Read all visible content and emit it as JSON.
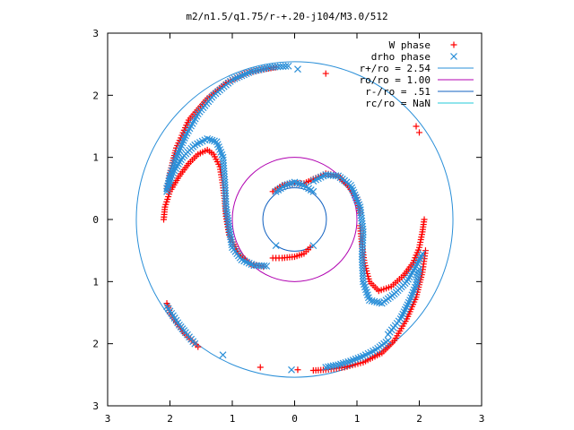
{
  "chart_data": {
    "type": "scatter",
    "title": "m2/n1.5/q1.75/r-+.20-j104/M3.0/512",
    "xlabel": "",
    "ylabel": "",
    "xlim": [
      -3,
      3
    ],
    "ylim": [
      -3,
      3
    ],
    "x_tick_labels": [
      "3",
      "2",
      "1",
      "0",
      "1",
      "2",
      "3"
    ],
    "y_tick_labels": [
      "3",
      "2",
      "1",
      "0",
      "1",
      "2",
      "3"
    ],
    "x_tick_values": [
      -3,
      -2,
      -1,
      0,
      1,
      2,
      3
    ],
    "y_tick_values": [
      3,
      2,
      1,
      0,
      -1,
      -2,
      -3
    ],
    "grid": false,
    "legend_position": "top-right",
    "legend": [
      {
        "label": "W phase",
        "marker": "plus",
        "color": "#ff0000"
      },
      {
        "label": "drho phase",
        "marker": "cross",
        "color": "#2a8fd8"
      },
      {
        "label": "r+/ro = 2.54",
        "line": true,
        "color": "#2a8fd8"
      },
      {
        "label": "ro/ro = 1.00",
        "line": true,
        "color": "#b000b0"
      },
      {
        "label": "r-/ro = .51",
        "line": true,
        "color": "#1060c0"
      },
      {
        "label": "rc/ro = NaN",
        "line": true,
        "color": "#20c8d8"
      }
    ],
    "circles": [
      {
        "name": "r+/ro = 2.54",
        "r": 2.54,
        "color": "#2a8fd8"
      },
      {
        "name": "ro/ro = 1.00",
        "r": 1.0,
        "color": "#b000b0"
      },
      {
        "name": "r-/ro = .51",
        "r": 0.51,
        "color": "#1060c0"
      }
    ],
    "series": [
      {
        "name": "W phase",
        "color": "#ff0000",
        "marker": "plus",
        "arms": [
          {
            "x": [
              -0.3,
              -0.5,
              -0.8,
              -1.1,
              -1.4,
              -1.7,
              -1.9,
              -2.0,
              -2.05
            ],
            "y": [
              2.45,
              2.42,
              2.35,
              2.2,
              1.95,
              1.6,
              1.15,
              0.75,
              0.5
            ]
          },
          {
            "x": [
              -2.1,
              -2.08,
              -2.0,
              -1.85,
              -1.7,
              -1.55,
              -1.4,
              -1.3,
              -1.2,
              -1.15,
              -1.12,
              -1.1,
              -1.05,
              -0.9,
              -0.7,
              -0.5
            ],
            "y": [
              0.0,
              0.2,
              0.45,
              0.7,
              0.9,
              1.05,
              1.12,
              1.05,
              0.85,
              0.55,
              0.3,
              0.05,
              -0.25,
              -0.55,
              -0.72,
              -0.76
            ]
          },
          {
            "x": [
              -0.35,
              -0.2,
              0.0,
              0.15,
              0.25
            ],
            "y": [
              -0.62,
              -0.62,
              -0.6,
              -0.55,
              -0.45
            ]
          },
          {
            "x": [
              -0.35,
              -0.2,
              0.0,
              0.15,
              0.3,
              0.5,
              0.7,
              0.85,
              1.0,
              1.05
            ],
            "y": [
              0.45,
              0.55,
              0.58,
              0.58,
              0.65,
              0.74,
              0.7,
              0.55,
              0.35,
              0.1
            ]
          },
          {
            "x": [
              1.05,
              1.08,
              1.12,
              1.2,
              1.35,
              1.55,
              1.75,
              1.9,
              2.0,
              2.05,
              2.08
            ],
            "y": [
              -0.1,
              -0.4,
              -0.7,
              -1.0,
              -1.15,
              -1.08,
              -0.9,
              -0.7,
              -0.45,
              -0.2,
              0.0
            ]
          },
          {
            "x": [
              2.1,
              2.05,
              1.95,
              1.8,
              1.6,
              1.4,
              1.1,
              0.8,
              0.5,
              0.3
            ],
            "y": [
              -0.5,
              -0.85,
              -1.25,
              -1.6,
              -1.95,
              -2.15,
              -2.3,
              -2.38,
              -2.42,
              -2.43
            ]
          },
          {
            "x": [
              -2.05,
              -2.0,
              -1.9,
              -1.8,
              -1.65,
              -1.55
            ],
            "y": [
              -1.35,
              -1.5,
              -1.65,
              -1.8,
              -1.95,
              -2.05
            ]
          },
          {
            "x": [
              0.5,
              -0.55,
              0.05,
              1.95,
              2.0
            ],
            "y": [
              2.35,
              -2.38,
              -2.42,
              1.5,
              1.4
            ]
          }
        ]
      },
      {
        "name": "drho phase",
        "color": "#2a8fd8",
        "marker": "cross",
        "arms": [
          {
            "x": [
              -0.1,
              -0.4,
              -0.7,
              -1.0,
              -1.3,
              -1.55,
              -1.75,
              -1.9,
              -2.0,
              -2.05
            ],
            "y": [
              2.47,
              2.45,
              2.38,
              2.25,
              2.0,
              1.7,
              1.35,
              1.0,
              0.7,
              0.45
            ]
          },
          {
            "x": [
              -2.05,
              -1.95,
              -1.8,
              -1.6,
              -1.4,
              -1.25,
              -1.15,
              -1.12,
              -1.1,
              -1.05,
              -1.0,
              -0.85,
              -0.65,
              -0.45
            ],
            "y": [
              0.5,
              0.75,
              1.0,
              1.2,
              1.3,
              1.25,
              1.0,
              0.6,
              0.2,
              -0.15,
              -0.45,
              -0.65,
              -0.74,
              -0.75
            ]
          },
          {
            "x": [
              -0.3,
              -0.15,
              0.0,
              0.15,
              0.3
            ],
            "y": [
              0.45,
              0.55,
              0.6,
              0.55,
              0.45
            ]
          },
          {
            "x": [
              0.3,
              0.5,
              0.7,
              0.9,
              1.05,
              1.1,
              1.08,
              1.1,
              1.2,
              1.4,
              1.6,
              1.8,
              1.95,
              2.05
            ],
            "y": [
              0.62,
              0.72,
              0.7,
              0.55,
              0.2,
              -0.2,
              -0.6,
              -1.0,
              -1.3,
              -1.35,
              -1.2,
              -1.0,
              -0.75,
              -0.55
            ]
          },
          {
            "x": [
              1.5,
              1.7,
              1.85,
              1.95,
              2.0
            ],
            "y": [
              -1.85,
              -1.6,
              -1.3,
              -1.05,
              -0.8
            ]
          },
          {
            "x": [
              1.5,
              1.3,
              1.1,
              0.9,
              0.7,
              0.5
            ],
            "y": [
              -1.95,
              -2.1,
              -2.2,
              -2.28,
              -2.34,
              -2.38
            ]
          },
          {
            "x": [
              -2.05,
              -1.95,
              -1.85,
              -1.75,
              -1.6
            ],
            "y": [
              -1.4,
              -1.55,
              -1.7,
              -1.82,
              -2.0
            ]
          },
          {
            "x": [
              0.05,
              -1.15,
              -0.05,
              0.3,
              -0.3
            ],
            "y": [
              2.42,
              -2.18,
              -2.42,
              -0.42,
              -0.42
            ]
          }
        ]
      }
    ]
  }
}
